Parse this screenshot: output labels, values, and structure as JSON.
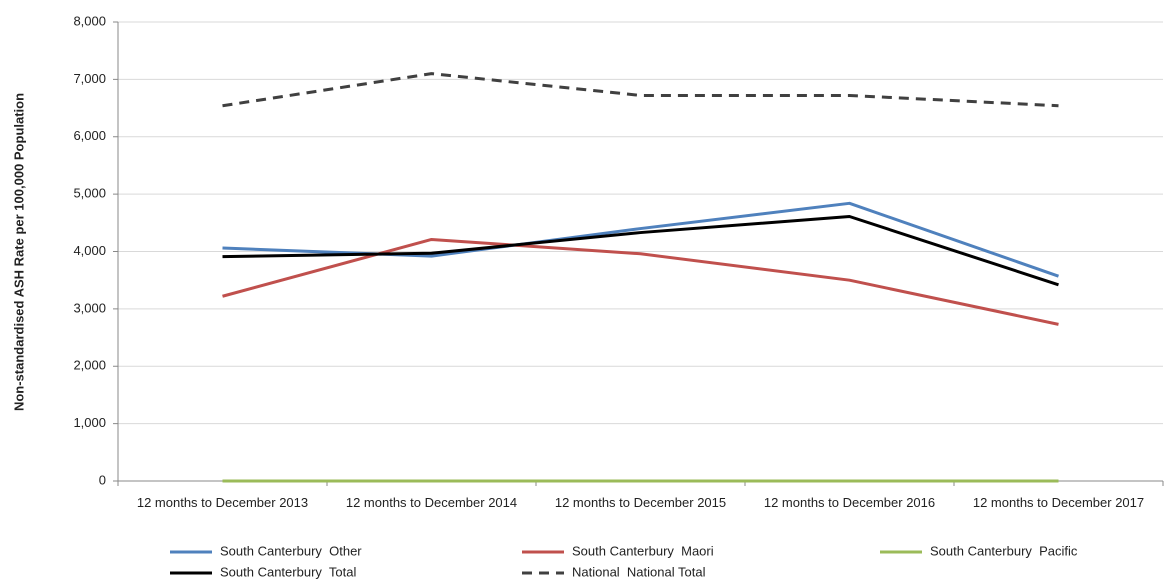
{
  "chart_data": {
    "type": "line",
    "y_label": "Non-standardised ASH Rate per 100,000 Population",
    "categories": [
      "12 months to December 2013",
      "12 months to December 2014",
      "12 months to December 2015",
      "12 months to December 2016",
      "12 months to December 2017"
    ],
    "series": [
      {
        "name": "South Canterbury  Other",
        "color": "#4f81bd",
        "values": [
          4060,
          3920,
          4400,
          4840,
          3570
        ]
      },
      {
        "name": "South Canterbury  Maori",
        "color": "#c0504d",
        "values": [
          3220,
          4210,
          3960,
          3500,
          2730
        ]
      },
      {
        "name": "South Canterbury  Pacific",
        "color": "#9bbb59",
        "values": [
          0,
          0,
          0,
          0,
          0
        ]
      },
      {
        "name": "South Canterbury  Total",
        "color": "#000000",
        "values": [
          3910,
          3970,
          4330,
          4610,
          3420
        ]
      },
      {
        "name": "National  National Total",
        "color": "#404040",
        "style": "dashed",
        "values": [
          6540,
          7100,
          6720,
          6720,
          6540
        ]
      }
    ],
    "ylim": [
      0,
      8000
    ],
    "yticks": [
      0,
      {
        "value": 1000,
        "label": "1,000"
      },
      {
        "value": 2000,
        "label": "2,000"
      },
      {
        "value": 3000,
        "label": "3,000"
      },
      {
        "value": 4000,
        "label": "4,000"
      },
      {
        "value": 5000,
        "label": "5,000"
      },
      {
        "value": 6000,
        "label": "6,000"
      },
      {
        "value": 7000,
        "label": "7,000"
      },
      {
        "value": 8000,
        "label": "8,000"
      }
    ],
    "grid": true,
    "legend": "bottom"
  }
}
